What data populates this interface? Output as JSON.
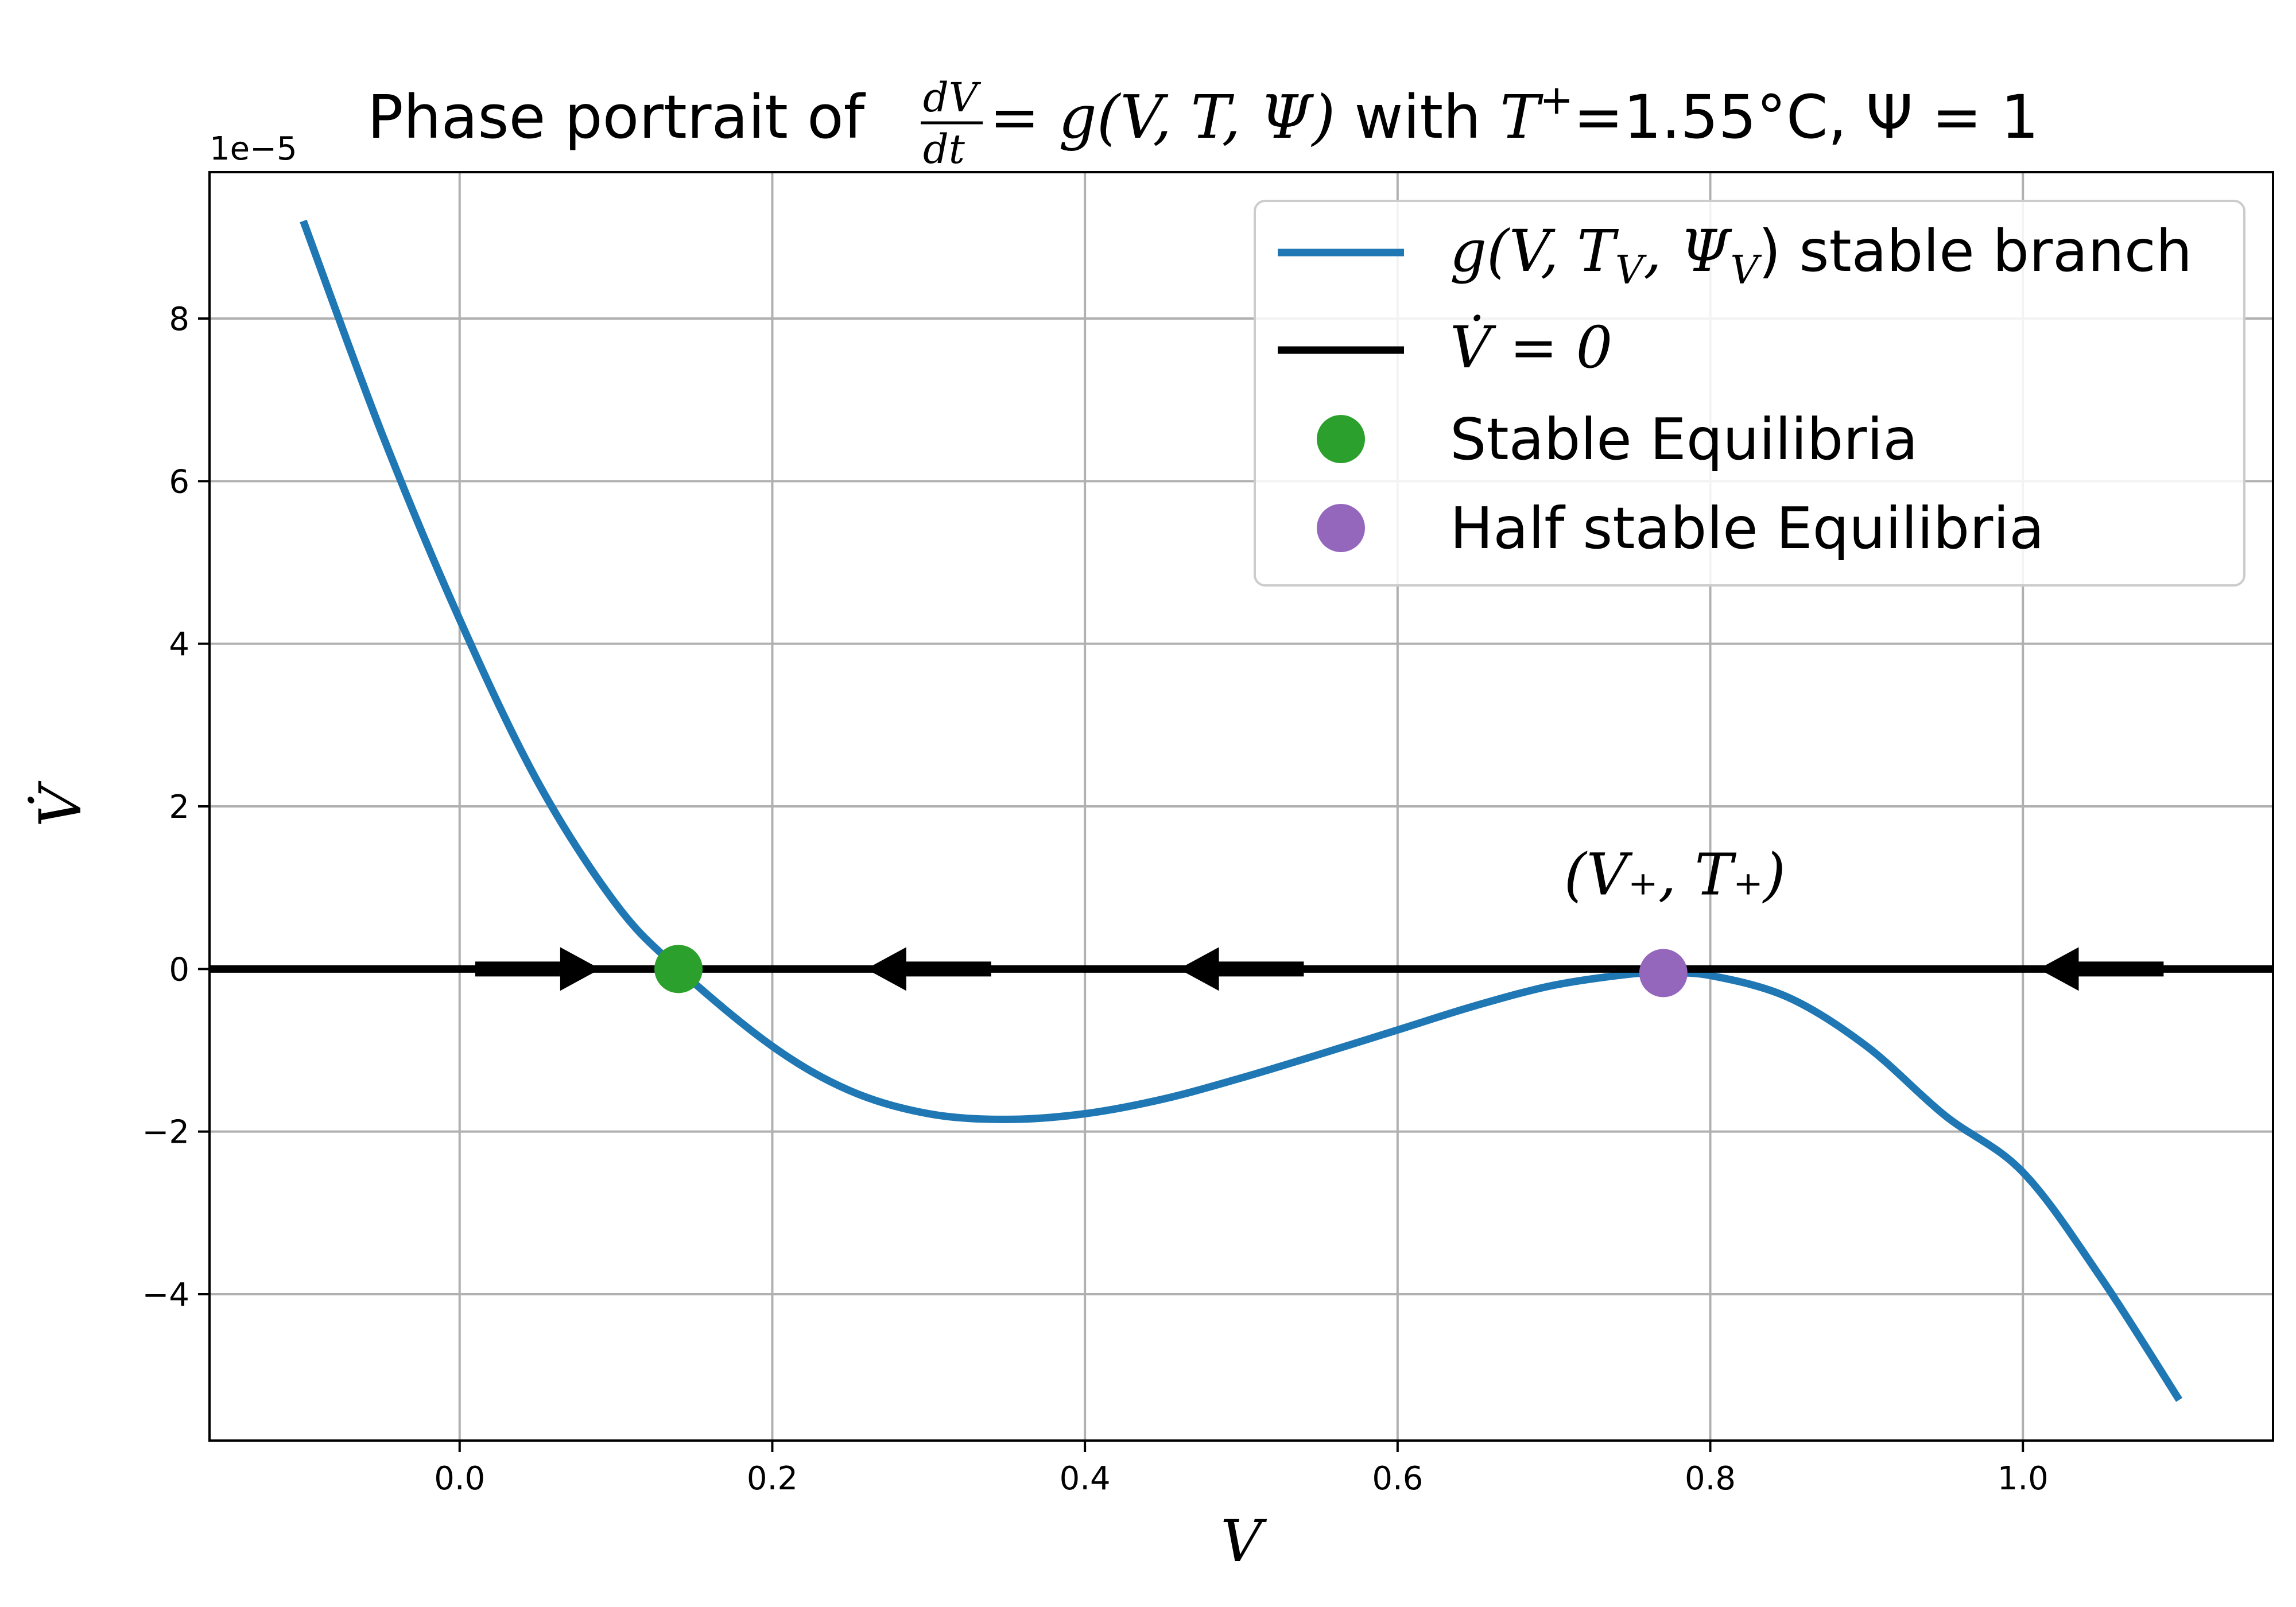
{
  "chart_data": {
    "type": "line",
    "title": {
      "prefix": "Phase portrait of ",
      "frac_num": "dV",
      "frac_den": "dt",
      "equation": " = g(V, T, Ψ)",
      "mid": " with ",
      "T_symbol": "T",
      "T_sup": "+",
      "T_value": "=1.55°C, ",
      "psi_part": "Ψ = 1"
    },
    "xlabel": "V",
    "ylabel": "V̇",
    "offset_text": "1e−5",
    "xlim": [
      -0.16,
      1.16
    ],
    "ylim": [
      -5.8,
      9.8
    ],
    "y_scale": 1e-05,
    "xticks": [
      0.0,
      0.2,
      0.4,
      0.6,
      0.8,
      1.0
    ],
    "xtick_labels": [
      "0.0",
      "0.2",
      "0.4",
      "0.6",
      "0.8",
      "1.0"
    ],
    "yticks": [
      -4,
      -2,
      0,
      2,
      4,
      6,
      8
    ],
    "ytick_labels": [
      "−4",
      "−2",
      "0",
      "2",
      "4",
      "6",
      "8"
    ],
    "grid": true,
    "legend_position": "top-right",
    "curve": {
      "name": "g(V, T_V, Ψ_V) stable branch",
      "color": "#1f77b4",
      "x": [
        -0.1,
        -0.05,
        0.0,
        0.05,
        0.1,
        0.14,
        0.2,
        0.25,
        0.3,
        0.35,
        0.4,
        0.45,
        0.5,
        0.55,
        0.6,
        0.65,
        0.7,
        0.75,
        0.77,
        0.8,
        0.85,
        0.9,
        0.95,
        1.0,
        1.05,
        1.1
      ],
      "y": [
        9.2,
        6.6,
        4.3,
        2.3,
        0.8,
        0.0,
        -0.95,
        -1.5,
        -1.78,
        -1.85,
        -1.78,
        -1.6,
        -1.34,
        -1.05,
        -0.75,
        -0.45,
        -0.2,
        -0.06,
        -0.05,
        -0.08,
        -0.35,
        -0.95,
        -1.8,
        -2.5,
        -3.8,
        -5.3
      ]
    },
    "zero_line": {
      "name": "V̇ = 0",
      "color": "#000000"
    },
    "arrows": [
      {
        "from": 0.01,
        "to": 0.09,
        "direction": "right"
      },
      {
        "from": 0.34,
        "to": 0.26,
        "direction": "left"
      },
      {
        "from": 0.54,
        "to": 0.46,
        "direction": "left"
      },
      {
        "from": 1.09,
        "to": 1.01,
        "direction": "left"
      }
    ],
    "stable_points": [
      {
        "x": 0.14,
        "y": 0.0
      }
    ],
    "half_stable_points": [
      {
        "x": 0.77,
        "y": -0.05
      }
    ],
    "stable_color": "#2ca02c",
    "half_stable_color": "#9467bd",
    "annotation": {
      "text": "(V₊, T₊)",
      "x": 0.77,
      "y": 1.2
    },
    "legend": [
      {
        "label_g": "g(",
        "label_vars": "V, T",
        "label_sub1": "V",
        "label_mid": ", Ψ",
        "label_sub2": "V",
        "label_end": ") stable branch"
      },
      {
        "label": "V̇ = 0"
      },
      {
        "label": "Stable Equilibria"
      },
      {
        "label": "Half stable Equilibria"
      }
    ]
  }
}
